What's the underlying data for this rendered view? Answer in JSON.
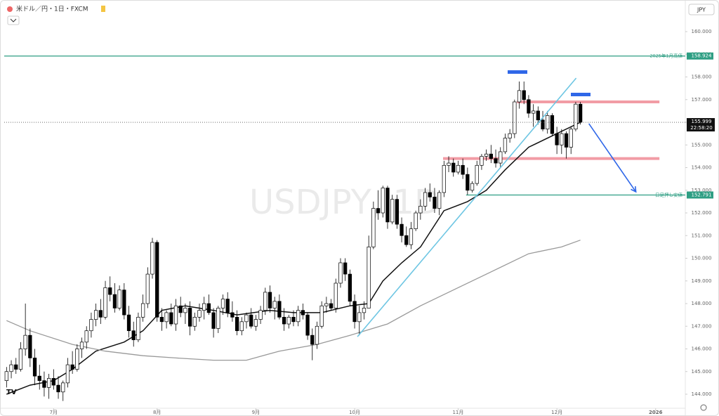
{
  "header": {
    "title": "米ドル／円・1日・FXCM",
    "currency": "JPY",
    "watermark": "USDJPY, 1D",
    "countdown": "22:58:20"
  },
  "chart_data": {
    "type": "candlestick",
    "xlim": [
      -0.5,
      144.3
    ],
    "ylim": [
      143.38,
      161.21
    ],
    "xticks": [
      {
        "value": 10,
        "label": "7月"
      },
      {
        "value": 32,
        "label": "8月"
      },
      {
        "value": 53,
        "label": "9月"
      },
      {
        "value": 74,
        "label": "10月"
      },
      {
        "value": 96,
        "label": "11月"
      },
      {
        "value": 117,
        "label": "12月"
      },
      {
        "value": 138,
        "label": "2026"
      }
    ],
    "yticks": [
      {
        "value": 144,
        "label": "144.000"
      },
      {
        "value": 145,
        "label": "145.000"
      },
      {
        "value": 146,
        "label": "146.000"
      },
      {
        "value": 147,
        "label": "147.000"
      },
      {
        "value": 148,
        "label": "148.000"
      },
      {
        "value": 149,
        "label": "149.000"
      },
      {
        "value": 150,
        "label": "150.000"
      },
      {
        "value": 151,
        "label": "151.000"
      },
      {
        "value": 152,
        "label": "152.000"
      },
      {
        "value": 153,
        "label": "153.000"
      },
      {
        "value": 154,
        "label": "154.000"
      },
      {
        "value": 155,
        "label": "155.000"
      },
      {
        "value": 156,
        "label": "156.000"
      },
      {
        "value": 157,
        "label": "157.000"
      },
      {
        "value": 158,
        "label": "158.000"
      },
      {
        "value": 159,
        "label": "159.000"
      },
      {
        "value": 160,
        "label": "160.000"
      }
    ],
    "up_color": "#ffffff",
    "down_color": "#000000",
    "outline_color": "#000000",
    "ohlc": [
      [
        144.6,
        145.2,
        144.3,
        145.0
      ],
      [
        145.0,
        145.5,
        144.7,
        145.3
      ],
      [
        145.3,
        145.6,
        144.9,
        145.1
      ],
      [
        145.1,
        146.3,
        145.0,
        146.0
      ],
      [
        146.0,
        148.0,
        145.7,
        146.6
      ],
      [
        146.6,
        146.9,
        145.2,
        145.6
      ],
      [
        145.6,
        146.0,
        144.4,
        144.8
      ],
      [
        144.8,
        145.3,
        144.2,
        144.6
      ],
      [
        144.6,
        145.0,
        143.9,
        144.3
      ],
      [
        144.3,
        144.9,
        143.8,
        144.7
      ],
      [
        144.7,
        145.1,
        144.2,
        144.4
      ],
      [
        144.4,
        144.8,
        143.8,
        144.1
      ],
      [
        144.1,
        144.6,
        143.7,
        144.5
      ],
      [
        144.5,
        145.6,
        144.3,
        145.3
      ],
      [
        145.3,
        145.9,
        144.9,
        145.1
      ],
      [
        145.1,
        146.2,
        145.0,
        146.0
      ],
      [
        146.0,
        146.5,
        145.6,
        146.3
      ],
      [
        146.3,
        147.0,
        146.0,
        146.8
      ],
      [
        146.8,
        147.6,
        146.5,
        147.3
      ],
      [
        147.3,
        148.0,
        147.0,
        147.7
      ],
      [
        147.7,
        148.2,
        147.1,
        147.4
      ],
      [
        147.4,
        149.0,
        147.3,
        148.7
      ],
      [
        148.7,
        149.2,
        148.1,
        148.4
      ],
      [
        148.4,
        148.9,
        147.6,
        147.8
      ],
      [
        147.8,
        148.8,
        147.7,
        148.6
      ],
      [
        148.6,
        148.9,
        147.3,
        147.5
      ],
      [
        147.5,
        147.9,
        146.5,
        146.8
      ],
      [
        146.8,
        147.2,
        146.1,
        146.4
      ],
      [
        146.4,
        147.6,
        146.3,
        147.4
      ],
      [
        147.4,
        148.4,
        147.2,
        148.0
      ],
      [
        148.0,
        149.6,
        147.8,
        149.3
      ],
      [
        149.3,
        150.9,
        149.1,
        150.7
      ],
      [
        150.7,
        150.8,
        147.2,
        147.4
      ],
      [
        147.4,
        147.8,
        146.8,
        147.2
      ],
      [
        147.2,
        147.7,
        146.9,
        147.6
      ],
      [
        147.6,
        148.0,
        147.0,
        147.1
      ],
      [
        147.1,
        148.2,
        146.8,
        147.9
      ],
      [
        147.9,
        148.3,
        147.4,
        147.6
      ],
      [
        147.6,
        148.0,
        147.1,
        147.8
      ],
      [
        147.8,
        148.1,
        146.6,
        147.0
      ],
      [
        147.0,
        147.6,
        146.8,
        147.4
      ],
      [
        147.4,
        148.0,
        147.2,
        147.7
      ],
      [
        147.7,
        148.3,
        147.3,
        148.0
      ],
      [
        148.0,
        148.4,
        147.5,
        147.6
      ],
      [
        147.6,
        147.8,
        146.5,
        146.9
      ],
      [
        146.9,
        147.9,
        146.7,
        147.8
      ],
      [
        147.8,
        148.4,
        147.5,
        148.2
      ],
      [
        148.2,
        148.5,
        147.4,
        147.6
      ],
      [
        147.6,
        148.1,
        147.2,
        147.4
      ],
      [
        147.4,
        147.7,
        146.6,
        146.8
      ],
      [
        146.8,
        147.4,
        146.6,
        147.2
      ],
      [
        147.2,
        147.6,
        146.9,
        147.5
      ],
      [
        147.5,
        147.8,
        146.9,
        147.0
      ],
      [
        147.0,
        147.5,
        146.8,
        147.3
      ],
      [
        147.3,
        147.9,
        147.1,
        147.7
      ],
      [
        147.7,
        148.7,
        147.5,
        148.5
      ],
      [
        148.5,
        148.8,
        147.6,
        147.8
      ],
      [
        147.8,
        148.3,
        147.3,
        148.1
      ],
      [
        148.1,
        148.4,
        147.3,
        147.4
      ],
      [
        147.4,
        147.8,
        146.8,
        147.1
      ],
      [
        147.1,
        147.5,
        146.9,
        147.4
      ],
      [
        147.4,
        147.7,
        147.0,
        147.2
      ],
      [
        147.2,
        147.9,
        147.0,
        147.7
      ],
      [
        147.7,
        148.0,
        147.3,
        147.5
      ],
      [
        147.5,
        147.6,
        146.4,
        146.6
      ],
      [
        146.6,
        146.9,
        145.5,
        146.2
      ],
      [
        146.2,
        147.2,
        146.0,
        147.0
      ],
      [
        147.0,
        148.1,
        146.9,
        147.9
      ],
      [
        147.9,
        148.3,
        147.6,
        148.0
      ],
      [
        148.0,
        148.2,
        147.7,
        147.8
      ],
      [
        147.8,
        149.1,
        147.6,
        148.9
      ],
      [
        148.9,
        150.0,
        148.7,
        149.8
      ],
      [
        149.8,
        150.0,
        149.0,
        149.3
      ],
      [
        149.3,
        149.5,
        147.9,
        148.1
      ],
      [
        148.1,
        148.4,
        146.9,
        147.2
      ],
      [
        147.2,
        147.9,
        146.6,
        147.6
      ],
      [
        147.6,
        148.1,
        147.3,
        147.8
      ],
      [
        147.8,
        151.0,
        147.8,
        150.5
      ],
      [
        150.5,
        152.5,
        150.4,
        152.2
      ],
      [
        152.2,
        153.0,
        151.7,
        152.0
      ],
      [
        152.0,
        153.2,
        151.8,
        153.1
      ],
      [
        153.1,
        153.2,
        151.3,
        151.6
      ],
      [
        151.6,
        152.8,
        151.5,
        152.6
      ],
      [
        152.6,
        152.8,
        151.3,
        151.5
      ],
      [
        151.5,
        151.8,
        150.7,
        151.0
      ],
      [
        151.0,
        151.4,
        150.5,
        150.6
      ],
      [
        150.6,
        151.6,
        150.4,
        151.3
      ],
      [
        151.3,
        152.1,
        151.2,
        152.0
      ],
      [
        152.0,
        152.6,
        151.7,
        152.3
      ],
      [
        152.3,
        153.1,
        152.1,
        152.9
      ],
      [
        152.9,
        153.3,
        152.5,
        152.7
      ],
      [
        152.7,
        153.1,
        152.0,
        152.2
      ],
      [
        152.2,
        153.0,
        151.9,
        152.9
      ],
      [
        152.9,
        154.3,
        152.7,
        154.1
      ],
      [
        154.1,
        154.5,
        153.8,
        154.2
      ],
      [
        154.2,
        154.4,
        153.6,
        153.8
      ],
      [
        153.8,
        154.3,
        153.7,
        154.1
      ],
      [
        154.1,
        154.4,
        153.5,
        153.7
      ],
      [
        153.7,
        154.0,
        152.8,
        153.0
      ],
      [
        153.0,
        153.4,
        152.9,
        153.3
      ],
      [
        153.3,
        154.3,
        153.2,
        154.1
      ],
      [
        154.1,
        154.6,
        153.9,
        154.5
      ],
      [
        154.5,
        154.8,
        154.3,
        154.6
      ],
      [
        154.6,
        155.0,
        154.2,
        154.4
      ],
      [
        154.4,
        154.8,
        154.0,
        154.2
      ],
      [
        154.2,
        154.9,
        154.0,
        154.7
      ],
      [
        154.7,
        155.5,
        154.6,
        155.3
      ],
      [
        155.3,
        155.7,
        155.1,
        155.5
      ],
      [
        155.5,
        157.0,
        155.3,
        156.9
      ],
      [
        156.9,
        157.8,
        156.6,
        157.4
      ],
      [
        157.4,
        157.8,
        156.8,
        157.0
      ],
      [
        157.0,
        157.2,
        156.2,
        156.4
      ],
      [
        156.4,
        156.8,
        155.8,
        156.5
      ],
      [
        156.5,
        156.7,
        155.9,
        156.1
      ],
      [
        156.1,
        156.5,
        155.6,
        155.7
      ],
      [
        155.7,
        156.5,
        155.5,
        156.3
      ],
      [
        156.3,
        156.4,
        155.4,
        155.5
      ],
      [
        155.5,
        155.8,
        154.6,
        155.0
      ],
      [
        155.0,
        155.7,
        154.6,
        155.5
      ],
      [
        155.5,
        155.6,
        154.4,
        154.9
      ],
      [
        154.9,
        155.8,
        154.6,
        155.7
      ],
      [
        155.7,
        156.9,
        155.6,
        156.8
      ],
      [
        156.8,
        156.9,
        155.9,
        155.999
      ]
    ],
    "ma": [
      {
        "color": "#111111",
        "x": [
          0,
          5,
          10,
          14,
          19,
          25,
          29,
          33,
          38,
          44,
          49,
          56,
          61,
          67,
          73,
          77,
          80,
          84,
          88,
          93,
          98,
          102,
          106,
          111,
          117,
          122
        ],
        "values": [
          144.0,
          144.4,
          144.6,
          145.1,
          145.9,
          146.3,
          146.8,
          147.7,
          147.9,
          147.7,
          147.5,
          147.7,
          147.6,
          147.6,
          147.9,
          148.0,
          149.0,
          149.8,
          150.5,
          152.1,
          152.5,
          153.0,
          153.9,
          154.9,
          155.5,
          156.0
        ]
      },
      {
        "color": "#999999",
        "x": [
          0,
          5,
          14,
          21,
          29,
          36,
          44,
          51,
          58,
          66,
          73,
          81,
          88,
          96,
          103,
          111,
          118,
          122
        ],
        "values": [
          147.25,
          146.8,
          146.2,
          145.9,
          145.7,
          145.6,
          145.5,
          145.5,
          145.9,
          146.2,
          146.6,
          147.1,
          147.9,
          148.7,
          149.4,
          150.2,
          150.5,
          150.8
        ]
      }
    ],
    "levels": [
      {
        "value": 158.924,
        "name": "2025年1月高値",
        "from": -0.5,
        "color": "#2e9e83"
      },
      {
        "value": 152.791,
        "name": "日足押し安値",
        "from": 97.7,
        "color": "#2e9e83"
      }
    ],
    "zones": [
      {
        "value": 156.9,
        "from": 108.5,
        "to": 138.8,
        "color": "#f08b95"
      },
      {
        "value": 154.4,
        "from": 92.8,
        "to": 138.8,
        "color": "#f08b95"
      }
    ],
    "trendlines": [
      {
        "x": [
          74.6,
          121.1
        ],
        "y": [
          146.54,
          157.95
        ],
        "color": "#6ec6e3"
      },
      {
        "x": [
          123.8,
          133.8
        ],
        "y": [
          155.94,
          152.93
        ],
        "color": "#2f67e8"
      }
    ],
    "last_price": 155.999
  }
}
